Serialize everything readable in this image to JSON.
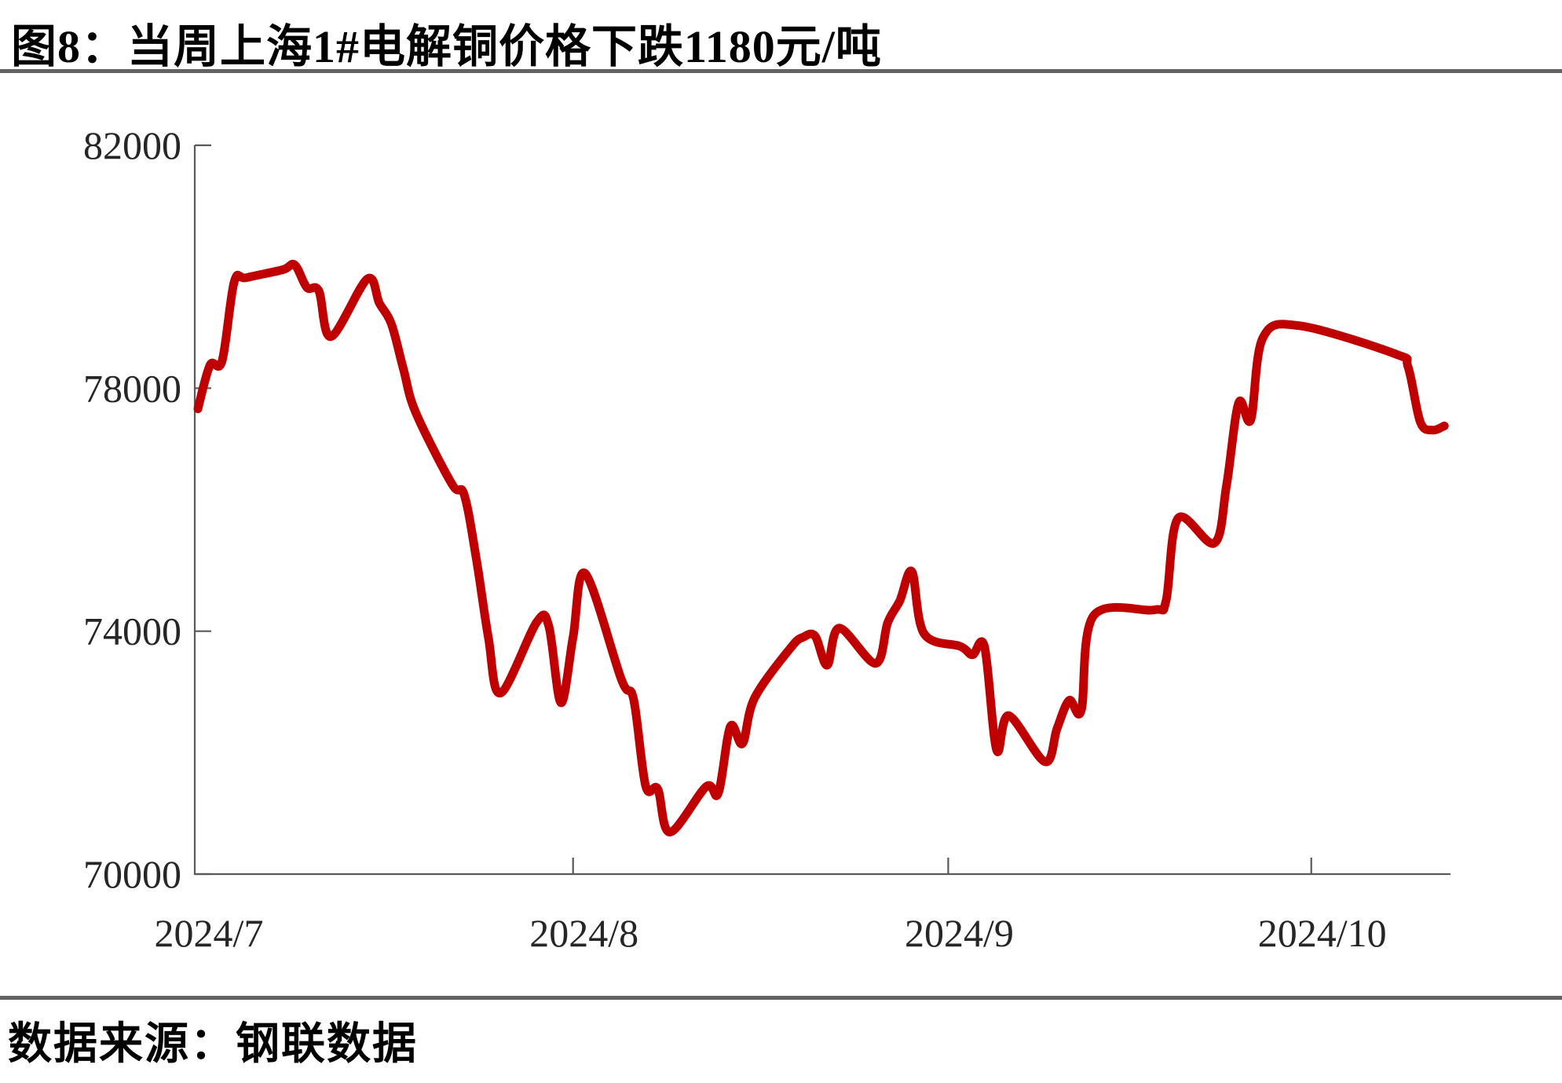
{
  "header": {
    "title": "图8：当周上海1#电解铜价格下跌1180元/吨"
  },
  "footer": {
    "source": "数据来源：钢联数据"
  },
  "colors": {
    "line": "#C00000",
    "axis": "#595959",
    "tick_label": "#262626",
    "divider": "#636363"
  },
  "chart_data": {
    "type": "line",
    "title": "当周上海1#电解铜价格下跌1180元/吨",
    "xlabel": "",
    "ylabel": "",
    "legend": "none",
    "grid": "off",
    "y_axis": {
      "min": 70000,
      "max": 82000,
      "tick_labels": [
        "70000",
        "74000",
        "78000",
        "82000"
      ],
      "tick_values": [
        70000,
        74000,
        78000,
        82000
      ]
    },
    "x_axis": {
      "start_date": "2024-07-01",
      "end_date": "2024-10-13",
      "tick_labels": [
        "2024/7",
        "2024/8",
        "2024/9",
        "2024/10"
      ],
      "tick_dates": [
        "2024-07-01",
        "2024-08-01",
        "2024-09-01",
        "2024-10-01"
      ]
    },
    "points": [
      [
        "2024-07-01",
        77660
      ],
      [
        "2024-07-02",
        78380
      ],
      [
        "2024-07-03",
        78450
      ],
      [
        "2024-07-04",
        79750
      ],
      [
        "2024-07-05",
        79820
      ],
      [
        "2024-07-08",
        79950
      ],
      [
        "2024-07-09",
        80030
      ],
      [
        "2024-07-10",
        79660
      ],
      [
        "2024-07-11",
        79600
      ],
      [
        "2024-07-12",
        78850
      ],
      [
        "2024-07-15",
        79800
      ],
      [
        "2024-07-16",
        79400
      ],
      [
        "2024-07-17",
        79050
      ],
      [
        "2024-07-18",
        78300
      ],
      [
        "2024-07-19",
        77600
      ],
      [
        "2024-07-22",
        76420
      ],
      [
        "2024-07-23",
        76250
      ],
      [
        "2024-07-24",
        75200
      ],
      [
        "2024-07-25",
        73900
      ],
      [
        "2024-07-26",
        72980
      ],
      [
        "2024-07-29",
        74150
      ],
      [
        "2024-07-30",
        74080
      ],
      [
        "2024-07-31",
        72820
      ],
      [
        "2024-08-01",
        73900
      ],
      [
        "2024-08-02",
        74950
      ],
      [
        "2024-08-05",
        73200
      ],
      [
        "2024-08-06",
        72880
      ],
      [
        "2024-08-07",
        71450
      ],
      [
        "2024-08-08",
        71400
      ],
      [
        "2024-08-09",
        70690
      ],
      [
        "2024-08-12",
        71440
      ],
      [
        "2024-08-13",
        71330
      ],
      [
        "2024-08-14",
        72430
      ],
      [
        "2024-08-15",
        72150
      ],
      [
        "2024-08-16",
        72900
      ],
      [
        "2024-08-19",
        73730
      ],
      [
        "2024-08-20",
        73900
      ],
      [
        "2024-08-21",
        73920
      ],
      [
        "2024-08-22",
        73440
      ],
      [
        "2024-08-23",
        74050
      ],
      [
        "2024-08-26",
        73470
      ],
      [
        "2024-08-27",
        74140
      ],
      [
        "2024-08-28",
        74500
      ],
      [
        "2024-08-29",
        74980
      ],
      [
        "2024-08-30",
        73960
      ],
      [
        "2024-09-02",
        73750
      ],
      [
        "2024-09-03",
        73610
      ],
      [
        "2024-09-04",
        73740
      ],
      [
        "2024-09-05",
        72040
      ],
      [
        "2024-09-06",
        72610
      ],
      [
        "2024-09-09",
        71850
      ],
      [
        "2024-09-10",
        72400
      ],
      [
        "2024-09-11",
        72860
      ],
      [
        "2024-09-12",
        72700
      ],
      [
        "2024-09-13",
        74250
      ],
      [
        "2024-09-18",
        74350
      ],
      [
        "2024-09-19",
        74500
      ],
      [
        "2024-09-20",
        75860
      ],
      [
        "2024-09-23",
        75450
      ],
      [
        "2024-09-24",
        76400
      ],
      [
        "2024-09-25",
        77760
      ],
      [
        "2024-09-26",
        77480
      ],
      [
        "2024-09-27",
        78830
      ],
      [
        "2024-09-30",
        79030
      ],
      [
        "2024-10-08",
        78560
      ],
      [
        "2024-10-09",
        78350
      ],
      [
        "2024-10-10",
        77450
      ],
      [
        "2024-10-11",
        77310
      ],
      [
        "2024-10-12",
        77380
      ]
    ]
  }
}
